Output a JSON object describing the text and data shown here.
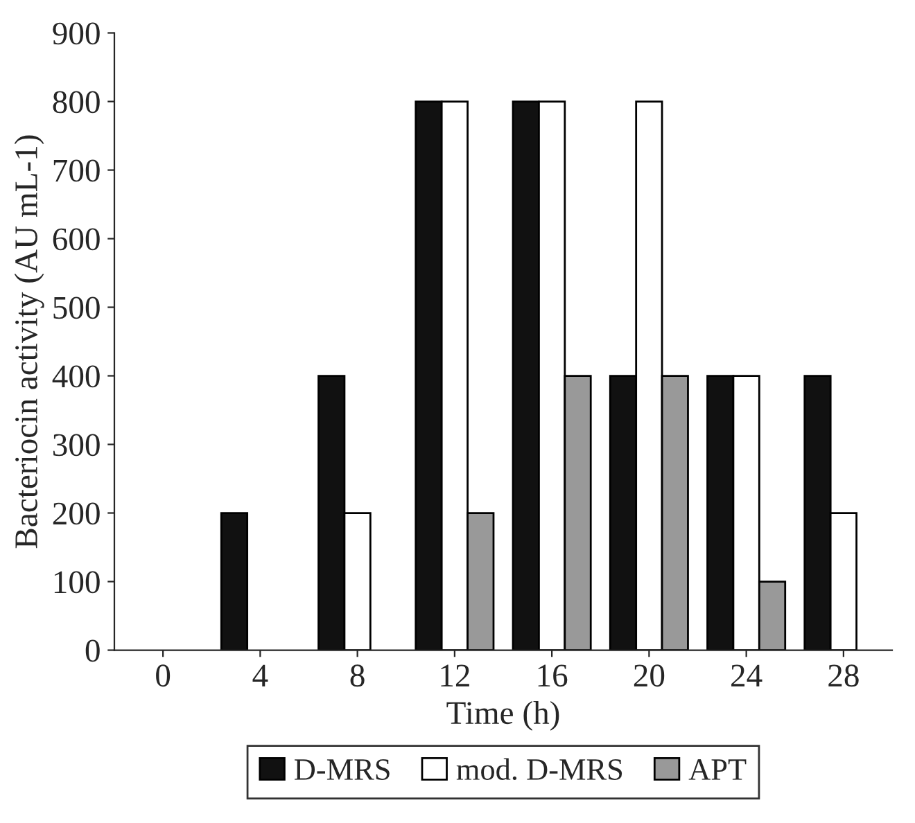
{
  "chart_data": {
    "type": "bar",
    "xlabel": "Time (h)",
    "ylabel": "Bacteriocin activity (AU mL-1)",
    "categories": [
      "0",
      "4",
      "8",
      "12",
      "16",
      "20",
      "24",
      "28"
    ],
    "series": [
      {
        "name": "D-MRS",
        "color": "#111111",
        "values": [
          0,
          200,
          400,
          800,
          800,
          400,
          400,
          400
        ]
      },
      {
        "name": "mod. D-MRS",
        "color": "#ffffff",
        "values": [
          0,
          0,
          200,
          800,
          800,
          800,
          400,
          200
        ]
      },
      {
        "name": "APT",
        "color": "#999999",
        "values": [
          0,
          0,
          0,
          200,
          400,
          400,
          100,
          0
        ]
      }
    ],
    "ylim": [
      0,
      900
    ],
    "yticks": [
      0,
      100,
      200,
      300,
      400,
      500,
      600,
      700,
      800,
      900
    ],
    "grid": false,
    "legend": "bottom"
  }
}
